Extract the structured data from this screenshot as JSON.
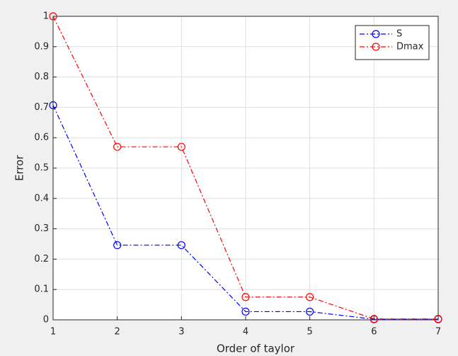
{
  "chart_data": {
    "type": "line",
    "x": [
      1,
      2,
      3,
      4,
      5,
      6,
      7
    ],
    "series": [
      {
        "name": "S",
        "color": "#0000ff",
        "values": [
          0.707,
          0.246,
          0.246,
          0.027,
          0.027,
          0.002,
          0.002
        ]
      },
      {
        "name": "Dmax",
        "color": "#ff0000",
        "values": [
          1,
          0.57,
          0.57,
          0.075,
          0.075,
          0.003,
          0.003
        ]
      }
    ],
    "xlabel": "Order of taylor",
    "ylabel": "Error",
    "xlim": [
      1,
      7
    ],
    "xticks": [
      1,
      2,
      3,
      4,
      5,
      6,
      7
    ],
    "ylim": [
      0,
      1
    ],
    "yticks": [
      0,
      0.1,
      0.2,
      0.3,
      0.4,
      0.5,
      0.6,
      0.7,
      0.8,
      0.9,
      1
    ],
    "grid": true,
    "line_style": "-.",
    "marker": "o",
    "legend": "northeast"
  }
}
